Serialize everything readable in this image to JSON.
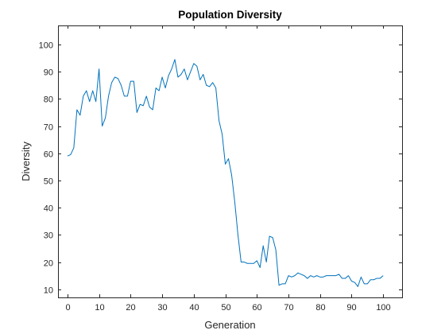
{
  "chart_data": {
    "type": "line",
    "title": "Population Diversity",
    "xlabel": "Generation",
    "ylabel": "Diversity",
    "xlim": [
      -3,
      106
    ],
    "ylim": [
      7,
      107
    ],
    "xticks": [
      0,
      10,
      20,
      30,
      40,
      50,
      60,
      70,
      80,
      90,
      100
    ],
    "yticks": [
      10,
      20,
      30,
      40,
      50,
      60,
      70,
      80,
      90,
      100
    ],
    "grid": false,
    "box": true,
    "series": [
      {
        "color": "#0072BD",
        "x": [
          0,
          1,
          2,
          3,
          4,
          5,
          6,
          7,
          8,
          9,
          10,
          11,
          12,
          13,
          14,
          15,
          16,
          17,
          18,
          19,
          20,
          21,
          22,
          23,
          24,
          25,
          26,
          27,
          28,
          29,
          30,
          31,
          32,
          33,
          34,
          35,
          36,
          37,
          38,
          39,
          40,
          41,
          42,
          43,
          44,
          45,
          46,
          47,
          48,
          49,
          50,
          51,
          52,
          53,
          54,
          55,
          56,
          57,
          58,
          59,
          60,
          61,
          62,
          63,
          64,
          65,
          66,
          67,
          68,
          69,
          70,
          71,
          72,
          73,
          74,
          75,
          76,
          77,
          78,
          79,
          80,
          81,
          82,
          83,
          84,
          85,
          86,
          87,
          88,
          89,
          90,
          91,
          92,
          93,
          94,
          95,
          96,
          97,
          98,
          99,
          100
        ],
        "y": [
          59,
          59.5,
          62,
          76,
          74,
          81,
          83,
          79,
          83,
          79,
          91,
          70,
          73,
          81,
          86,
          88,
          87.5,
          85,
          81,
          81,
          86.5,
          86.5,
          75,
          78,
          77.5,
          81,
          77,
          76,
          84,
          83,
          88,
          84,
          88.5,
          91,
          94.5,
          88,
          89,
          91,
          87,
          90,
          93,
          92,
          87,
          89,
          85,
          84.5,
          86,
          84,
          72,
          67,
          56,
          58,
          52,
          42,
          30,
          20,
          20,
          19.5,
          19.5,
          19.5,
          20.5,
          18,
          26,
          20,
          29.5,
          29,
          24.5,
          11.5,
          12,
          12,
          15,
          14.5,
          15,
          16,
          15.5,
          15,
          14,
          15,
          14.5,
          15,
          14.5,
          14.5,
          15,
          15,
          15,
          15,
          15.5,
          14,
          14,
          15,
          13,
          12.5,
          11,
          14.5,
          12,
          12,
          13.5,
          13.5,
          14,
          14,
          15
        ]
      }
    ]
  }
}
